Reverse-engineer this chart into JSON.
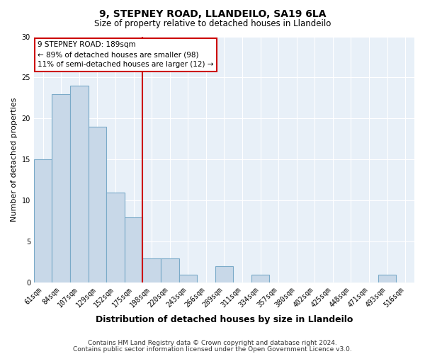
{
  "title": "9, STEPNEY ROAD, LLANDEILO, SA19 6LA",
  "subtitle": "Size of property relative to detached houses in Llandeilo",
  "xlabel": "Distribution of detached houses by size in Llandeilo",
  "ylabel": "Number of detached properties",
  "categories": [
    "61sqm",
    "84sqm",
    "107sqm",
    "129sqm",
    "152sqm",
    "175sqm",
    "198sqm",
    "220sqm",
    "243sqm",
    "266sqm",
    "289sqm",
    "311sqm",
    "334sqm",
    "357sqm",
    "380sqm",
    "402sqm",
    "425sqm",
    "448sqm",
    "471sqm",
    "493sqm",
    "516sqm"
  ],
  "values": [
    15,
    23,
    24,
    19,
    11,
    8,
    3,
    3,
    1,
    0,
    2,
    0,
    1,
    0,
    0,
    0,
    0,
    0,
    0,
    1,
    0
  ],
  "bar_color": "#c8d8e8",
  "bar_edge_color": "#7aaac8",
  "red_line_x": 5.5,
  "red_line_color": "#cc0000",
  "ylim": [
    0,
    30
  ],
  "yticks": [
    0,
    5,
    10,
    15,
    20,
    25,
    30
  ],
  "annotation_text": "9 STEPNEY ROAD: 189sqm\n← 89% of detached houses are smaller (98)\n11% of semi-detached houses are larger (12) →",
  "annotation_box_facecolor": "#ffffff",
  "annotation_box_edgecolor": "#cc0000",
  "footer_line1": "Contains HM Land Registry data © Crown copyright and database right 2024.",
  "footer_line2": "Contains public sector information licensed under the Open Government Licence v3.0.",
  "background_color": "#ffffff",
  "plot_bg_color": "#e8f0f8",
  "title_fontsize": 10,
  "subtitle_fontsize": 8.5,
  "xlabel_fontsize": 9,
  "ylabel_fontsize": 8,
  "tick_fontsize": 7,
  "annotation_fontsize": 7.5,
  "footer_fontsize": 6.5
}
